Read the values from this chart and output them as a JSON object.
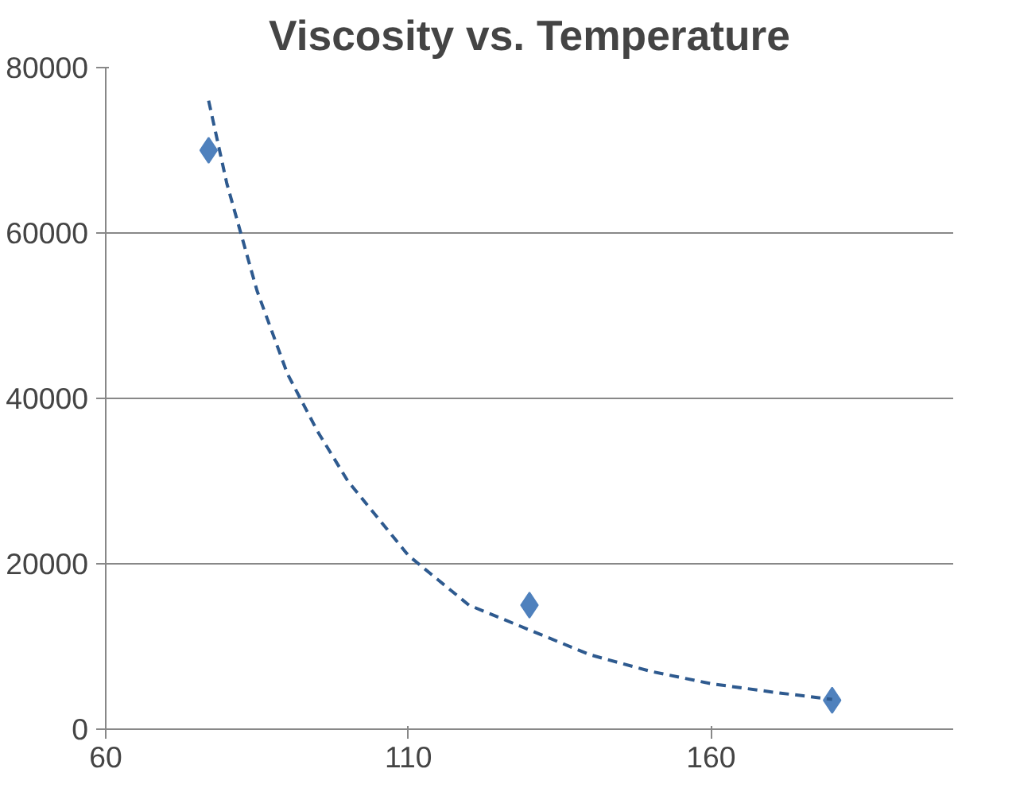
{
  "chart_data": {
    "type": "scatter",
    "title": "Viscosity vs. Temperature",
    "series": [
      {
        "color": "#4f81bd",
        "marker": "diamond",
        "x": [
          77,
          130,
          180
        ],
        "values": [
          70000,
          15000,
          3500
        ]
      },
      {
        "type": "line",
        "color": "#2e5a8f",
        "line_style": "dashed",
        "x": [
          77,
          80,
          85,
          90,
          95,
          100,
          110,
          120,
          130,
          140,
          150,
          160,
          170,
          180
        ],
        "values": [
          76000,
          66000,
          53000,
          43000,
          36000,
          30000,
          21000,
          15000,
          12000,
          9000,
          7000,
          5500,
          4500,
          3600
        ]
      }
    ],
    "xlim": [
      60,
      200
    ],
    "xticks": [
      60,
      110,
      160
    ],
    "ylim": [
      0,
      80000
    ],
    "yticks": [
      0,
      20000,
      40000,
      60000,
      80000
    ],
    "grid": "y"
  }
}
